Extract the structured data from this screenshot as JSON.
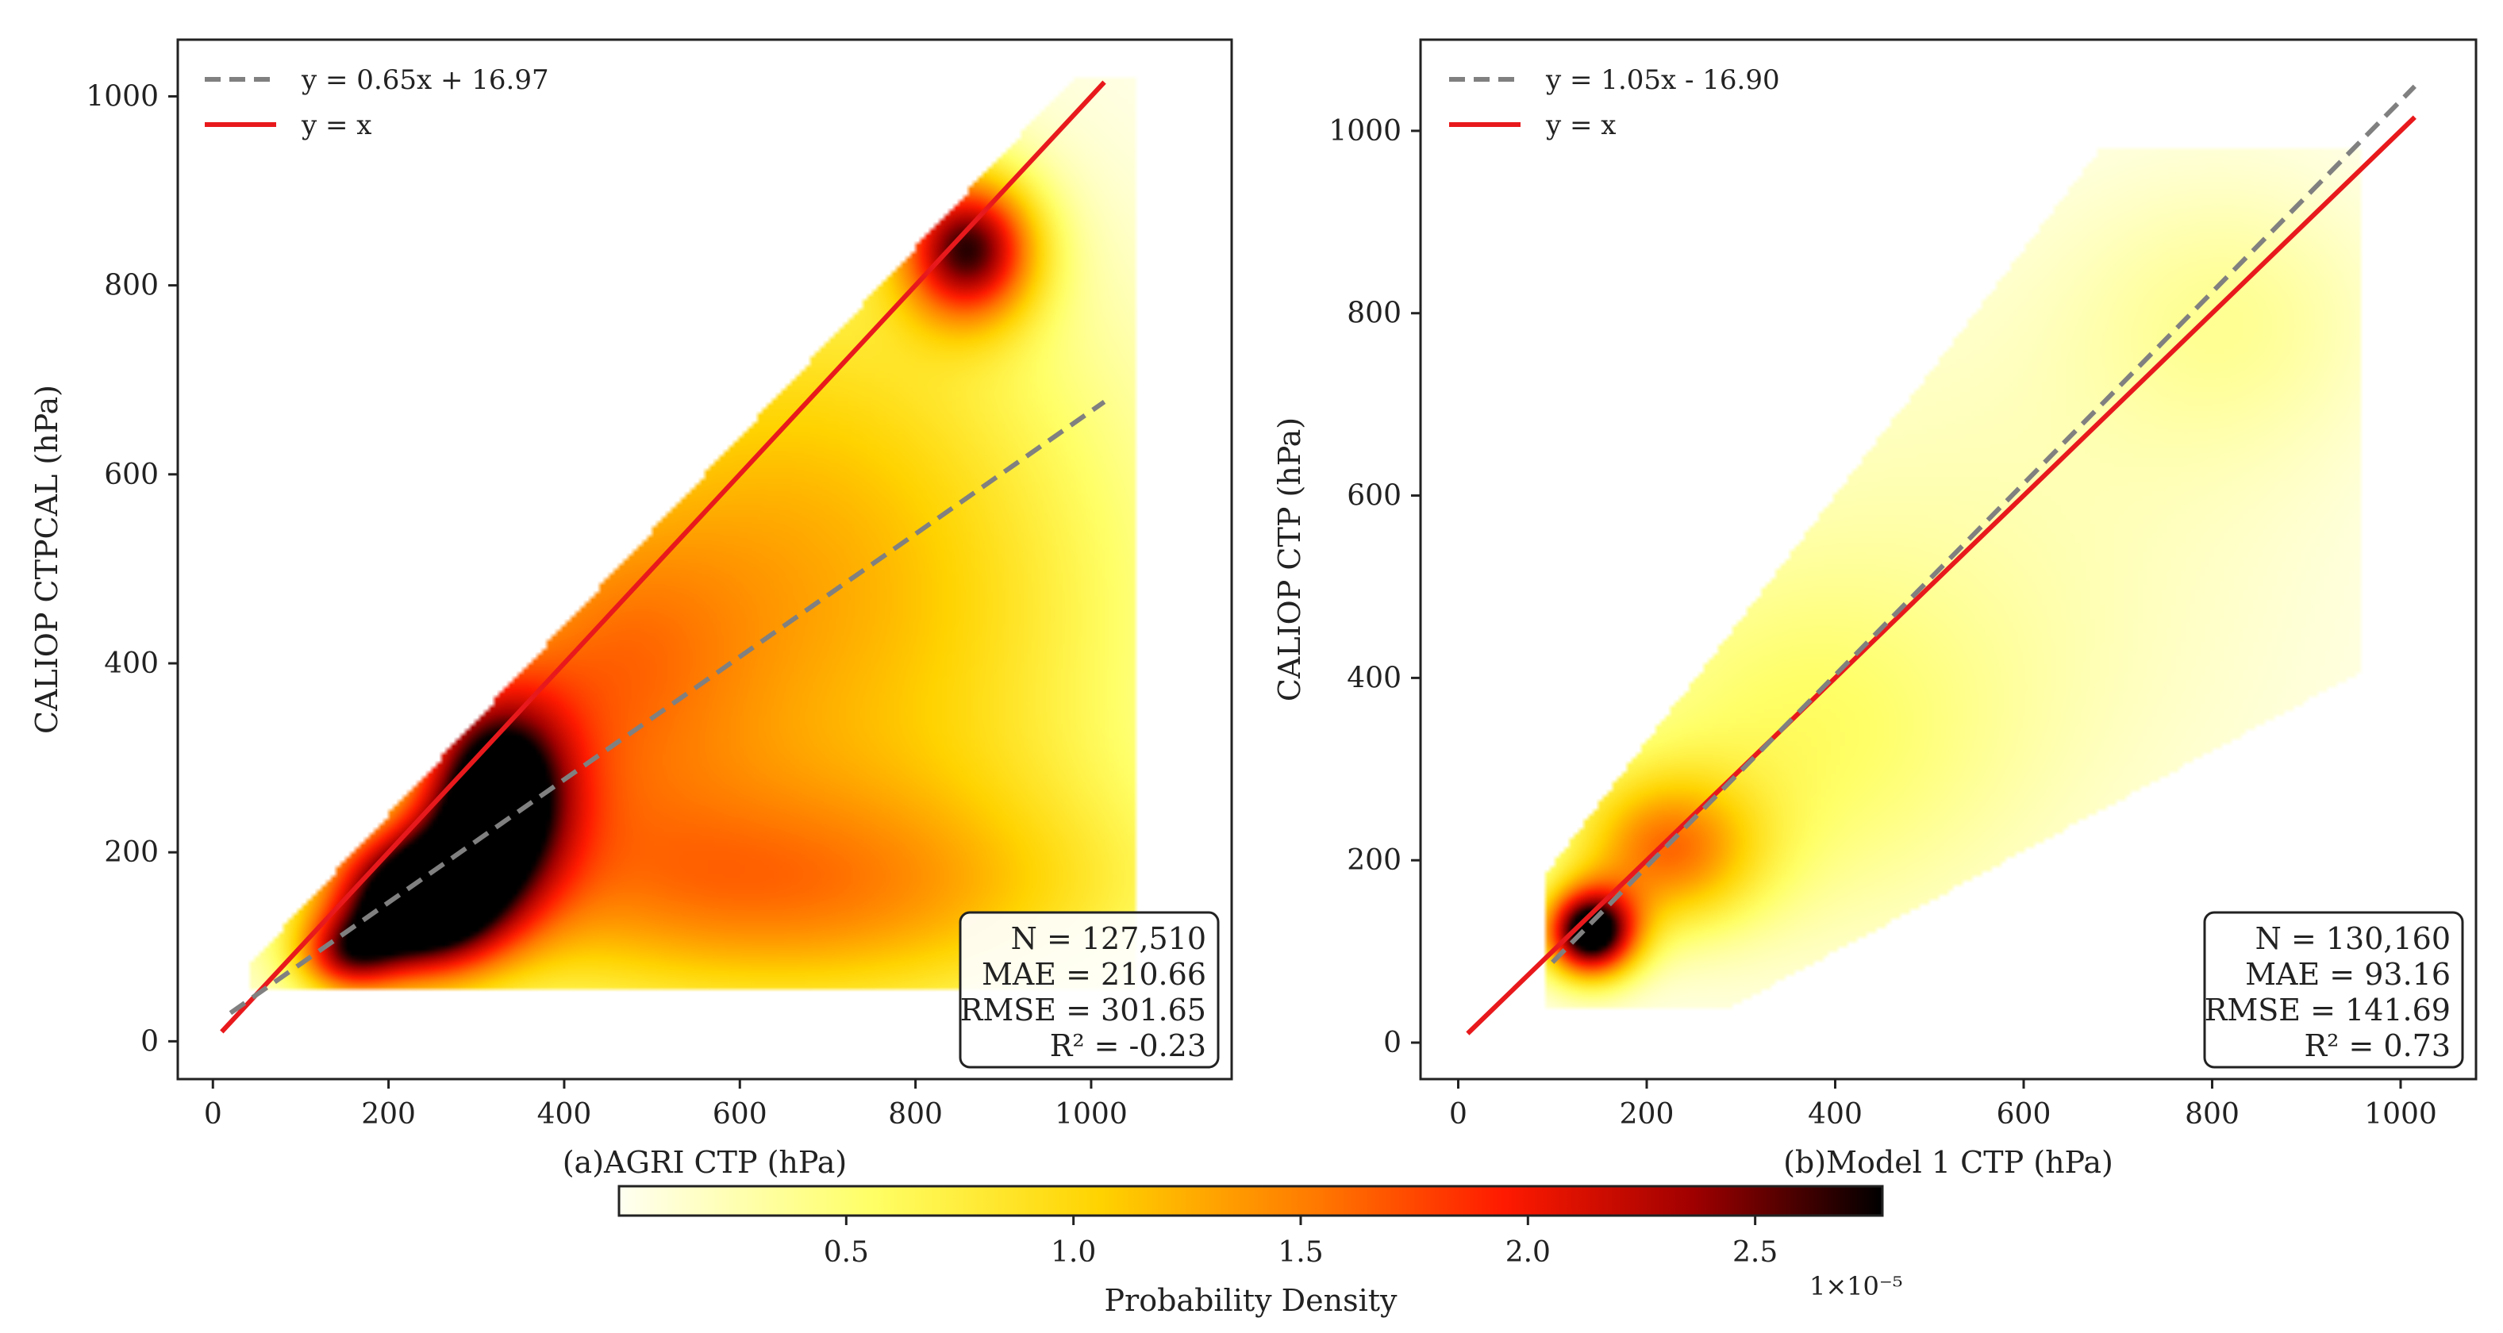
{
  "colors": {
    "density_low": "#fffff2",
    "density_mid": "#ffff33",
    "density_orange": "#ffa500",
    "density_red": "#ff1a00",
    "density_high": "#000000",
    "identity_line": "#e8191c",
    "fit_line": "#808080",
    "axis": "#222222"
  },
  "chart_data": [
    {
      "type": "scatter",
      "id": "a",
      "style": "density",
      "xlabel": "(a)AGRI CTP (hPa)",
      "ylabel": "CALIOP CTPCAL (hPa)",
      "xlim": [
        -40,
        1160
      ],
      "ylim": [
        -40,
        1060
      ],
      "xticks": [
        0,
        200,
        400,
        600,
        800,
        1000
      ],
      "yticks": [
        0,
        200,
        400,
        600,
        800,
        1000
      ],
      "fit": {
        "slope": 0.65,
        "intercept": 16.97,
        "x_range": [
          20,
          1015
        ],
        "legend": "y = 0.65x + 16.97"
      },
      "identity": {
        "x_range": [
          10,
          1015
        ],
        "legend": "y = x"
      },
      "density_blobs": [
        {
          "x": 230,
          "y": 145,
          "sx": 70,
          "sy": 55,
          "w": 1.0
        },
        {
          "x": 320,
          "y": 260,
          "sx": 60,
          "sy": 75,
          "w": 0.85
        },
        {
          "x": 860,
          "y": 840,
          "sx": 55,
          "sy": 55,
          "w": 0.78
        },
        {
          "x": 620,
          "y": 600,
          "sx": 250,
          "sy": 250,
          "w": 0.22
        },
        {
          "x": 600,
          "y": 150,
          "sx": 330,
          "sy": 90,
          "w": 0.35
        },
        {
          "x": 750,
          "y": 400,
          "sx": 260,
          "sy": 250,
          "w": 0.25
        },
        {
          "x": 420,
          "y": 380,
          "sx": 130,
          "sy": 130,
          "w": 0.3
        },
        {
          "x": 150,
          "y": 90,
          "sx": 40,
          "sy": 30,
          "w": 0.45
        }
      ],
      "stats": {
        "lines": [
          "N = 127,510",
          "MAE = 210.66",
          "RMSE = 301.65",
          "R² = -0.23"
        ]
      }
    },
    {
      "type": "scatter",
      "id": "b",
      "style": "density",
      "xlabel": "(b)Model 1 CTP (hPa)",
      "ylabel": "CALIOP CTP (hPa)",
      "xlim": [
        -40,
        1080
      ],
      "ylim": [
        -40,
        1100
      ],
      "xticks": [
        0,
        200,
        400,
        600,
        800,
        1000
      ],
      "yticks": [
        0,
        200,
        400,
        600,
        800,
        1000
      ],
      "fit": {
        "slope": 1.05,
        "intercept": -16.9,
        "x_range": [
          100,
          1015
        ],
        "legend": "y = 1.05x - 16.90"
      },
      "identity": {
        "x_range": [
          10,
          1015
        ],
        "legend": "y = x"
      },
      "density_blobs": [
        {
          "x": 140,
          "y": 120,
          "sx": 35,
          "sy": 35,
          "w": 1.0
        },
        {
          "x": 220,
          "y": 210,
          "sx": 70,
          "sy": 60,
          "w": 0.45
        },
        {
          "x": 350,
          "y": 320,
          "sx": 160,
          "sy": 140,
          "w": 0.15
        },
        {
          "x": 550,
          "y": 520,
          "sx": 280,
          "sy": 260,
          "w": 0.08
        },
        {
          "x": 820,
          "y": 800,
          "sx": 120,
          "sy": 110,
          "w": 0.1
        }
      ],
      "stats": {
        "lines": [
          "N = 130,160",
          "MAE = 93.16",
          "RMSE = 141.69",
          "R² = 0.73"
        ]
      }
    }
  ],
  "colorbar": {
    "label": "Probability Density",
    "multiplier": "1×10⁻⁵",
    "min": 0.0,
    "max": 2.78,
    "ticks": [
      0.5,
      1.0,
      1.5,
      2.0,
      2.5
    ],
    "tick_labels": [
      "0.5",
      "1.0",
      "1.5",
      "2.0",
      "2.5"
    ]
  }
}
